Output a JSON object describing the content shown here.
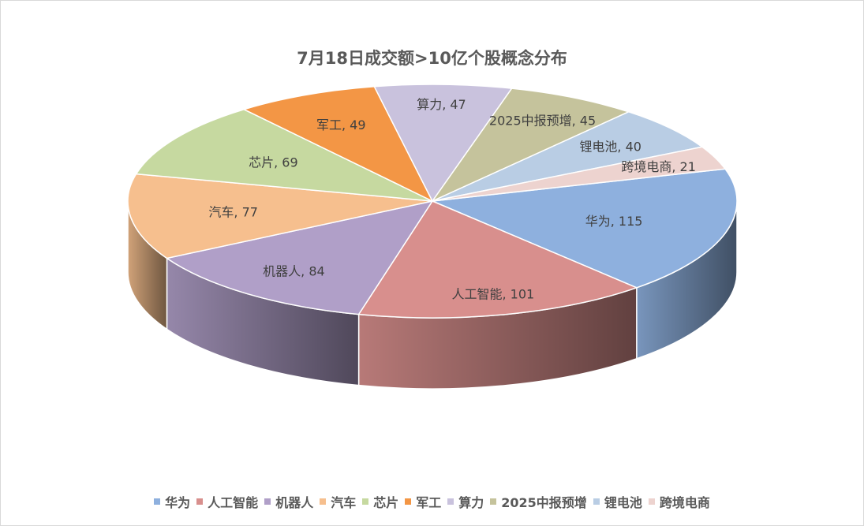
{
  "chart_data": {
    "type": "pie",
    "title": "7月18日成交额>10亿个股概念分布",
    "legend_position": "bottom",
    "three_d": true,
    "slices": [
      {
        "label": "华为",
        "value": 115,
        "color": "#8EB0DE",
        "data_label": "华为, 115"
      },
      {
        "label": "人工智能",
        "value": 101,
        "color": "#D88F8D",
        "data_label": "人工智能, 101"
      },
      {
        "label": "机器人",
        "value": 84,
        "color": "#B09FC8",
        "data_label": "机器人, 84"
      },
      {
        "label": "汽车",
        "value": 77,
        "color": "#F6BF8E",
        "data_label": "汽车, 77"
      },
      {
        "label": "芯片",
        "value": 69,
        "color": "#C6D9A0",
        "data_label": "芯片, 69"
      },
      {
        "label": "军工",
        "value": 49,
        "color": "#F39645",
        "data_label": "军工, 49"
      },
      {
        "label": "算力",
        "value": 47,
        "color": "#C9C2DD",
        "data_label": "算力, 47"
      },
      {
        "label": "2025中报预增",
        "value": 45,
        "color": "#C5C39C",
        "data_label": "2025中报预增, 45"
      },
      {
        "label": "锂电池",
        "value": 40,
        "color": "#B9CDE4",
        "data_label": "锂电池, 40"
      },
      {
        "label": "跨境电商",
        "value": 21,
        "color": "#EDD3CF",
        "data_label": "跨境电商, 21"
      }
    ]
  }
}
